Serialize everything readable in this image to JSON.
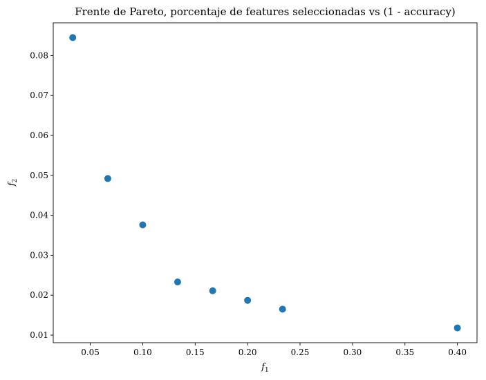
{
  "chart_data": {
    "type": "scatter",
    "title": "Frente de Pareto, porcentaje de features seleccionadas vs (1 - accuracy)",
    "xlabel": {
      "base": "f",
      "sub": "1"
    },
    "ylabel": {
      "base": "f",
      "sub": "2"
    },
    "xlim": [
      0.0147,
      0.4187
    ],
    "ylim": [
      0.0081,
      0.0882
    ],
    "xticks": [
      {
        "value": 0.05,
        "label": "0.05"
      },
      {
        "value": 0.1,
        "label": "0.10"
      },
      {
        "value": 0.15,
        "label": "0.15"
      },
      {
        "value": 0.2,
        "label": "0.20"
      },
      {
        "value": 0.25,
        "label": "0.25"
      },
      {
        "value": 0.3,
        "label": "0.30"
      },
      {
        "value": 0.35,
        "label": "0.35"
      },
      {
        "value": 0.4,
        "label": "0.40"
      }
    ],
    "yticks": [
      {
        "value": 0.01,
        "label": "0.01"
      },
      {
        "value": 0.02,
        "label": "0.02"
      },
      {
        "value": 0.03,
        "label": "0.03"
      },
      {
        "value": 0.04,
        "label": "0.04"
      },
      {
        "value": 0.05,
        "label": "0.05"
      },
      {
        "value": 0.06,
        "label": "0.06"
      },
      {
        "value": 0.07,
        "label": "0.07"
      },
      {
        "value": 0.08,
        "label": "0.08"
      }
    ],
    "grid": false,
    "marker_color": "#1f77b4",
    "points": [
      {
        "x": 0.0333,
        "y": 0.0845
      },
      {
        "x": 0.0667,
        "y": 0.0492
      },
      {
        "x": 0.1,
        "y": 0.0376
      },
      {
        "x": 0.1333,
        "y": 0.0233
      },
      {
        "x": 0.1667,
        "y": 0.0211
      },
      {
        "x": 0.2,
        "y": 0.0187
      },
      {
        "x": 0.2333,
        "y": 0.0165
      },
      {
        "x": 0.4,
        "y": 0.0118
      }
    ]
  }
}
